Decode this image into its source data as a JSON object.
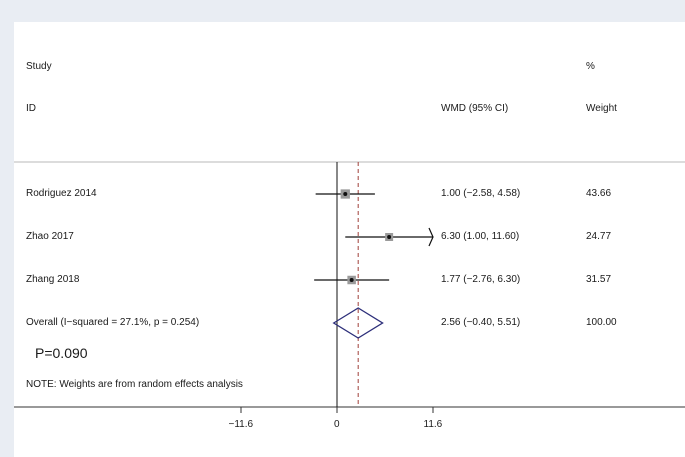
{
  "chart_data": {
    "type": "forest",
    "header": {
      "study_line1": "Study",
      "study_line2": "ID",
      "effect_label": "WMD (95% CI)",
      "weight_line1": "%",
      "weight_line2": "Weight"
    },
    "studies": [
      {
        "id": "Rodriguez 2014",
        "estimate": 1.0,
        "lower": -2.58,
        "upper": 4.58,
        "ci_text": "1.00 (−2.58, 4.58)",
        "weight": 43.66,
        "weight_text": "43.66"
      },
      {
        "id": "Zhao 2017",
        "estimate": 6.3,
        "lower": 1.0,
        "upper": 11.6,
        "ci_text": "6.30 (1.00, 11.60)",
        "weight": 24.77,
        "weight_text": "24.77"
      },
      {
        "id": "Zhang 2018",
        "estimate": 1.77,
        "lower": -2.76,
        "upper": 6.3,
        "ci_text": "1.77 (−2.76, 6.30)",
        "weight": 31.57,
        "weight_text": "31.57"
      }
    ],
    "overall": {
      "label": "Overall  (I−squared = 27.1%, p = 0.254)",
      "estimate": 2.56,
      "lower": -0.4,
      "upper": 5.51,
      "ci_text": "2.56 (−0.40, 5.51)",
      "weight_text": "100.00"
    },
    "p_value_text": "P=0.090",
    "note": "NOTE: Weights are from random effects analysis",
    "xlim": [
      -11.6,
      11.6
    ],
    "clip_max": 11.6,
    "x_ticks": [
      {
        "value": -11.6,
        "label": "−11.6"
      },
      {
        "value": 0,
        "label": "0"
      },
      {
        "value": 11.6,
        "label": "11.6"
      }
    ],
    "null_line": 0
  }
}
